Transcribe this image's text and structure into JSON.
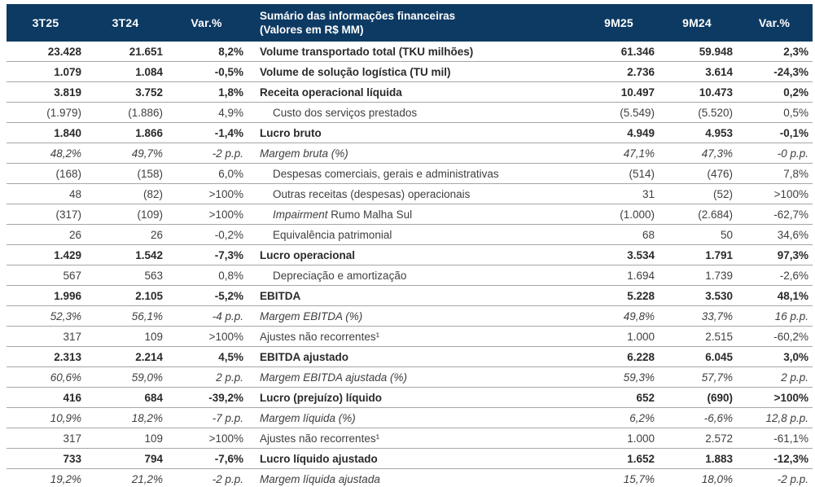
{
  "colors": {
    "header_bg": "#0d3a63",
    "header_text": "#ffffff",
    "row_line": "#a6a6a6",
    "body_text": "#3f3f3f"
  },
  "header": {
    "col_3t25": "3T25",
    "col_3t24": "3T24",
    "col_var_left": "Var.%",
    "title_line1": "Sumário das informações financeiras",
    "title_line2": "(Valores em R$ MM)",
    "col_9m25": "9M25",
    "col_9m24": "9M24",
    "col_var_right": "Var.%"
  },
  "rows": [
    {
      "style": "bold",
      "c1": "23.428",
      "c2": "21.651",
      "c3": "8,2%",
      "label": "Volume transportado total (TKU milhões)",
      "c5": "61.346",
      "c6": "59.948",
      "c7": "2,3%"
    },
    {
      "style": "bold",
      "c1": "1.079",
      "c2": "1.084",
      "c3": "-0,5%",
      "label": "Volume de solução logística (TU mil)",
      "c5": "2.736",
      "c6": "3.614",
      "c7": "-24,3%"
    },
    {
      "style": "bold",
      "c1": "3.819",
      "c2": "3.752",
      "c3": "1,8%",
      "label": "Receita operacional líquida",
      "c5": "10.497",
      "c6": "10.473",
      "c7": "0,2%"
    },
    {
      "style": "sub",
      "c1": "(1.979)",
      "c2": "(1.886)",
      "c3": "4,9%",
      "label": "Custo dos serviços prestados",
      "c5": "(5.549)",
      "c6": "(5.520)",
      "c7": "0,5%"
    },
    {
      "style": "bold",
      "c1": "1.840",
      "c2": "1.866",
      "c3": "-1,4%",
      "label": "Lucro bruto",
      "c5": "4.949",
      "c6": "4.953",
      "c7": "-0,1%"
    },
    {
      "style": "italic",
      "c1": "48,2%",
      "c2": "49,7%",
      "c3": "-2 p.p.",
      "label": "Margem bruta (%)",
      "c5": "47,1%",
      "c6": "47,3%",
      "c7": "-0 p.p."
    },
    {
      "style": "sub",
      "c1": "(168)",
      "c2": "(158)",
      "c3": "6,0%",
      "label": "Despesas comerciais, gerais e administrativas",
      "c5": "(514)",
      "c6": "(476)",
      "c7": "7,8%"
    },
    {
      "style": "sub",
      "c1": "48",
      "c2": "(82)",
      "c3": ">100%",
      "label": "Outras receitas (despesas) operacionais",
      "c5": "31",
      "c6": "(52)",
      "c7": ">100%"
    },
    {
      "style": "sub",
      "c1": "(317)",
      "c2": "(109)",
      "c3": ">100%",
      "label_italic": "Impairment ",
      "label": "Rumo Malha Sul",
      "c5": "(1.000)",
      "c6": "(2.684)",
      "c7": "-62,7%"
    },
    {
      "style": "sub",
      "c1": "26",
      "c2": "26",
      "c3": "-0,2%",
      "label": "Equivalência patrimonial",
      "c5": "68",
      "c6": "50",
      "c7": "34,6%"
    },
    {
      "style": "bold",
      "c1": "1.429",
      "c2": "1.542",
      "c3": "-7,3%",
      "label": "Lucro operacional",
      "c5": "3.534",
      "c6": "1.791",
      "c7": "97,3%"
    },
    {
      "style": "sub",
      "c1": "567",
      "c2": "563",
      "c3": "0,8%",
      "label": "Depreciação e amortização",
      "c5": "1.694",
      "c6": "1.739",
      "c7": "-2,6%"
    },
    {
      "style": "bold",
      "c1": "1.996",
      "c2": "2.105",
      "c3": "-5,2%",
      "label": "EBITDA",
      "c5": "5.228",
      "c6": "3.530",
      "c7": "48,1%"
    },
    {
      "style": "italic",
      "c1": "52,3%",
      "c2": "56,1%",
      "c3": "-4 p.p.",
      "label": "Margem EBITDA (%)",
      "c5": "49,8%",
      "c6": "33,7%",
      "c7": "16 p.p."
    },
    {
      "style": "plain",
      "c1": "317",
      "c2": "109",
      "c3": ">100%",
      "label": "Ajustes não recorrentes¹",
      "c5": "1.000",
      "c6": "2.515",
      "c7": "-60,2%"
    },
    {
      "style": "bold",
      "c1": "2.313",
      "c2": "2.214",
      "c3": "4,5%",
      "label": "EBITDA ajustado",
      "c5": "6.228",
      "c6": "6.045",
      "c7": "3,0%"
    },
    {
      "style": "italic",
      "c1": "60,6%",
      "c2": "59,0%",
      "c3": "2 p.p.",
      "label": "Margem EBITDA ajustada (%)",
      "c5": "59,3%",
      "c6": "57,7%",
      "c7": "2 p.p."
    },
    {
      "style": "bold",
      "c1": "416",
      "c2": "684",
      "c3": "-39,2%",
      "label": "Lucro (prejuízo) líquido",
      "c5": "652",
      "c6": "(690)",
      "c7": ">100%"
    },
    {
      "style": "italic",
      "c1": "10,9%",
      "c2": "18,2%",
      "c3": "-7 p.p.",
      "label": "Margem líquida (%)",
      "c5": "6,2%",
      "c6": "-6,6%",
      "c7": "12,8 p.p."
    },
    {
      "style": "plain",
      "c1": "317",
      "c2": "109",
      "c3": ">100%",
      "label": "Ajustes não recorrentes¹",
      "c5": "1.000",
      "c6": "2.572",
      "c7": "-61,1%"
    },
    {
      "style": "bold",
      "c1": "733",
      "c2": "794",
      "c3": "-7,6%",
      "label": "Lucro líquido ajustado",
      "c5": "1.652",
      "c6": "1.883",
      "c7": "-12,3%"
    },
    {
      "style": "italic",
      "c1": "19,2%",
      "c2": "21,2%",
      "c3": "-2 p.p.",
      "label": "Margem líquida ajustada",
      "c5": "15,7%",
      "c6": "18,0%",
      "c7": "-2 p.p."
    }
  ]
}
